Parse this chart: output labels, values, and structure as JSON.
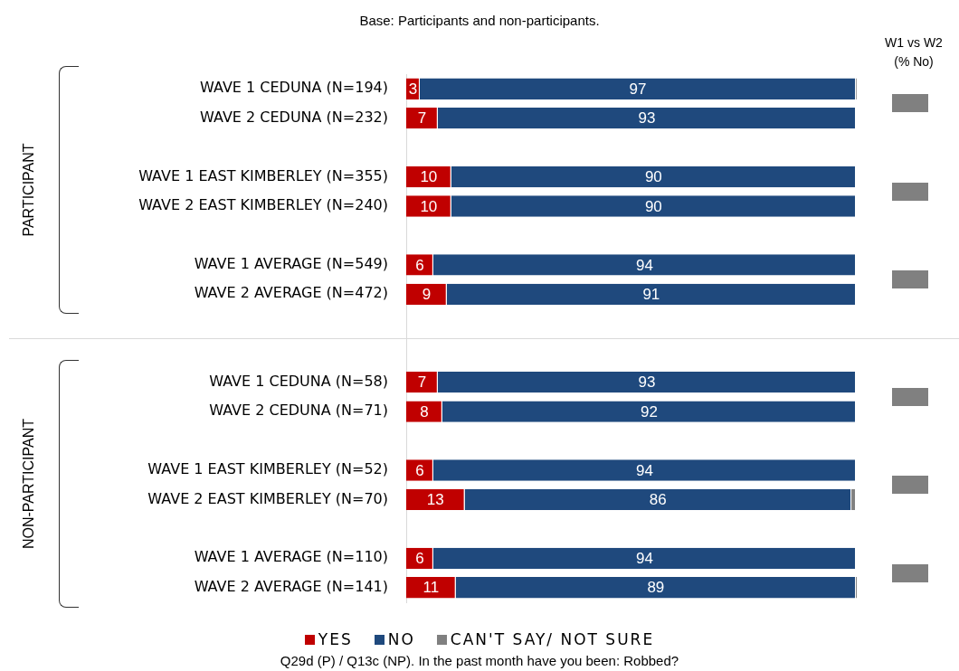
{
  "chart_data": {
    "type": "bar",
    "orientation": "horizontal",
    "stacked": true,
    "subtitle": "Base: Participants and non-participants.",
    "categories": [
      "WAVE 1 CEDUNA (N=194)",
      "WAVE 2 CEDUNA (N=232)",
      null,
      "WAVE 1 EAST KIMBERLEY (N=355)",
      "WAVE 2 EAST KIMBERLEY (N=240)",
      null,
      "WAVE 1 AVERAGE (N=549)",
      "WAVE 2 AVERAGE (N=472)",
      null,
      null,
      "WAVE 1 CEDUNA (N=58)",
      "WAVE 2 CEDUNA (N=71)",
      null,
      "WAVE 1 EAST KIMBERLEY (N=52)",
      "WAVE 2 EAST KIMBERLEY (N=70)",
      null,
      "WAVE 1 AVERAGE (N=110)",
      "WAVE 2 AVERAGE (N=141)"
    ],
    "series": [
      {
        "name": "YES",
        "color": "#c00000",
        "values": [
          3,
          7,
          null,
          10,
          10,
          null,
          6,
          9,
          null,
          null,
          7,
          8,
          null,
          6,
          13,
          null,
          6,
          11
        ],
        "value_labels": [
          "3",
          "7",
          null,
          "10",
          "10",
          null,
          "6",
          "9",
          null,
          null,
          "7",
          "8",
          null,
          "6",
          "13",
          null,
          "6",
          "11"
        ]
      },
      {
        "name": "NO",
        "color": "#1f497d",
        "values": [
          97,
          93,
          null,
          90,
          90,
          null,
          94,
          91,
          null,
          null,
          93,
          92,
          null,
          94,
          86,
          null,
          94,
          89
        ],
        "value_labels": [
          "97",
          "93",
          null,
          "90",
          "90",
          null,
          "94",
          "91",
          null,
          null,
          "93",
          "92",
          null,
          "94",
          "86",
          null,
          "94",
          "89"
        ]
      },
      {
        "name": "CAN'T SAY/ NOT SURE",
        "color": "#808080",
        "values": [
          0.3,
          0,
          null,
          0,
          0,
          null,
          0,
          0,
          null,
          null,
          0,
          0,
          null,
          0,
          1,
          null,
          0,
          0.4
        ]
      }
    ],
    "tick_labels": "y",
    "legend": "bottom",
    "annotations": [
      "PARTICIPANT",
      "NON-PARTICIPANT",
      "W1 vs W2\n(% No)",
      "Q29d (P) / Q13c (NP). In the past month have you been: Robbed?"
    ]
  }
}
